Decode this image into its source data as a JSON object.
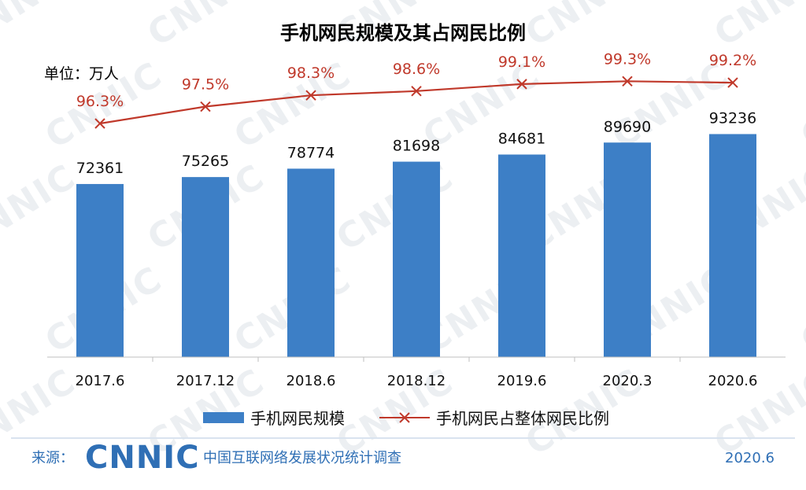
{
  "chart_data": {
    "type": "bar",
    "title": "手机网民规模及其占网民比例",
    "unit_label": "单位：万人",
    "categories": [
      "2017.6",
      "2017.12",
      "2018.6",
      "2018.12",
      "2019.6",
      "2020.3",
      "2020.6"
    ],
    "series": [
      {
        "name": "手机网民规模",
        "type": "bar",
        "color": "#3d7fc6",
        "values": [
          72361,
          75265,
          78774,
          81698,
          84681,
          89690,
          93236
        ],
        "labels": [
          "72361",
          "75265",
          "78774",
          "81698",
          "84681",
          "89690",
          "93236"
        ]
      },
      {
        "name": "手机网民占整体网民比例",
        "type": "line",
        "marker": "x",
        "color": "#c0392b",
        "values": [
          96.3,
          97.5,
          98.3,
          98.6,
          99.1,
          99.3,
          99.2
        ],
        "labels": [
          "96.3%",
          "97.5%",
          "98.3%",
          "98.6%",
          "99.1%",
          "99.3%",
          "99.2%"
        ]
      }
    ],
    "legend_position": "bottom",
    "grid": false
  },
  "footer": {
    "source_label": "来源：",
    "logo_text": "CNNIC",
    "source_text": "中国互联网络发展状况统计调查",
    "date": "2020.6"
  },
  "colors": {
    "bar": "#3d7fc6",
    "line": "#c0392b",
    "footer_blue": "#2f6fb5"
  }
}
